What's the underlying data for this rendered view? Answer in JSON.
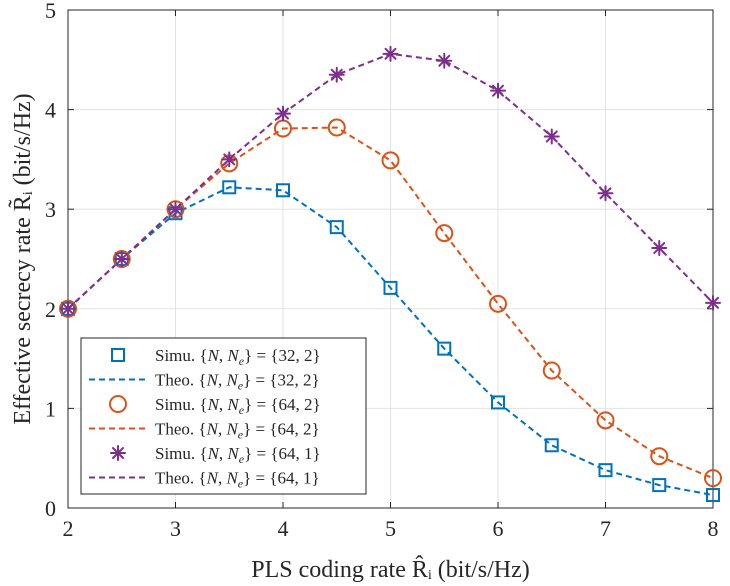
{
  "chart_data": {
    "type": "line",
    "title": "",
    "xlabel": "PLS coding rate R̂ᵢ (bit/s/Hz)",
    "ylabel": "Effective secrecy rate R̃ᵢ (bit/s/Hz)",
    "xlim": [
      2,
      8
    ],
    "ylim": [
      0,
      5
    ],
    "xticks": [
      2,
      3,
      4,
      5,
      6,
      7,
      8
    ],
    "yticks": [
      0,
      1,
      2,
      3,
      4,
      5
    ],
    "grid": true,
    "legend_position": "bottom-left",
    "x": [
      2,
      2.5,
      3,
      3.5,
      4,
      4.5,
      5,
      5.5,
      6,
      6.5,
      7,
      7.5,
      8
    ],
    "series": [
      {
        "name": "Simu. {N, Nₑ} = {32, 2}",
        "style": "markers",
        "marker": "square",
        "color": "#0072BD",
        "values": [
          2.0,
          2.5,
          2.96,
          3.22,
          3.19,
          2.82,
          2.21,
          1.6,
          1.06,
          0.63,
          0.38,
          0.23,
          0.13
        ]
      },
      {
        "name": "Theo. {N, Nₑ} = {32, 2}",
        "style": "dashed",
        "color": "#0072BD",
        "values": [
          2.0,
          2.5,
          2.96,
          3.22,
          3.19,
          2.82,
          2.21,
          1.6,
          1.06,
          0.63,
          0.38,
          0.23,
          0.13
        ]
      },
      {
        "name": "Simu. {N, Nₑ} = {64, 2}",
        "style": "markers",
        "marker": "circle",
        "color": "#D95319",
        "values": [
          2.0,
          2.5,
          3.0,
          3.46,
          3.81,
          3.82,
          3.49,
          2.76,
          2.05,
          1.38,
          0.88,
          0.52,
          0.3
        ]
      },
      {
        "name": "Theo. {N, Nₑ} = {64, 2}",
        "style": "dashed",
        "color": "#D95319",
        "values": [
          2.0,
          2.5,
          3.0,
          3.46,
          3.81,
          3.82,
          3.49,
          2.76,
          2.05,
          1.38,
          0.88,
          0.52,
          0.3
        ]
      },
      {
        "name": "Simu. {N, Nₑ} = {64, 1}",
        "style": "markers",
        "marker": "asterisk",
        "color": "#7E2F8E",
        "values": [
          2.0,
          2.5,
          3.0,
          3.5,
          3.96,
          4.35,
          4.56,
          4.49,
          4.19,
          3.73,
          3.16,
          2.61,
          2.06
        ]
      },
      {
        "name": "Theo. {N, Nₑ} = {64, 1}",
        "style": "dashed",
        "color": "#7E2F8E",
        "values": [
          2.0,
          2.5,
          3.0,
          3.5,
          3.96,
          4.35,
          4.56,
          4.49,
          4.19,
          3.73,
          3.16,
          2.61,
          2.06
        ]
      }
    ],
    "legend": [
      {
        "prefix": "Simu.",
        "N": "32",
        "Ne": "2"
      },
      {
        "prefix": "Theo.",
        "N": "32",
        "Ne": "2"
      },
      {
        "prefix": "Simu.",
        "N": "64",
        "Ne": "2"
      },
      {
        "prefix": "Theo.",
        "N": "64",
        "Ne": "2"
      },
      {
        "prefix": "Simu.",
        "N": "64",
        "Ne": "1"
      },
      {
        "prefix": "Theo.",
        "N": "64",
        "Ne": "1"
      }
    ]
  }
}
